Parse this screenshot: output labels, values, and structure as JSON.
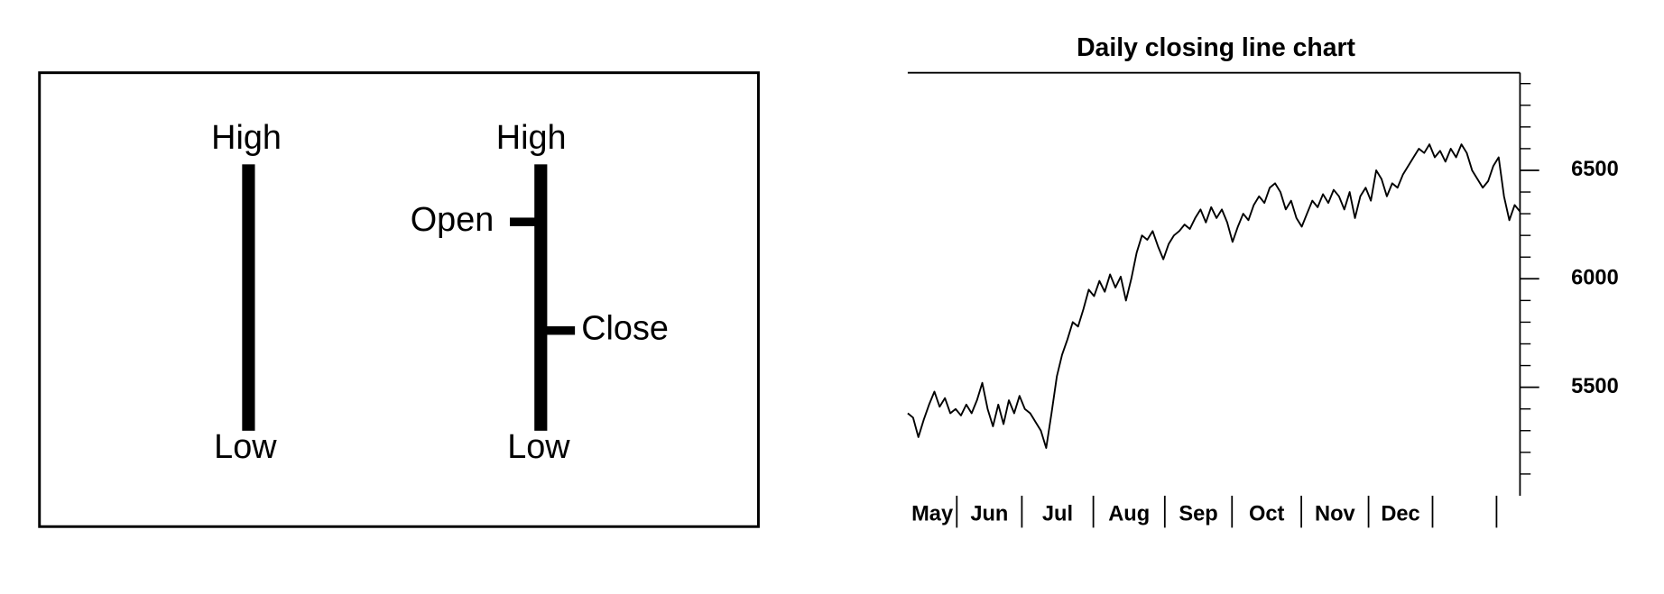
{
  "diagram": {
    "bar_chart": {
      "high": "High",
      "low": "Low"
    },
    "ohlc_chart": {
      "high": "High",
      "open": "Open",
      "close": "Close",
      "low": "Low"
    }
  },
  "chart_data": {
    "type": "line",
    "title": "Daily closing line chart",
    "color": "#000000",
    "x_tick_labels": [
      "May",
      "Jun",
      "Jul",
      "Aug",
      "Sep",
      "Oct",
      "Nov",
      "Dec",
      null
    ],
    "values": [
      5380,
      5360,
      5270,
      5350,
      5420,
      5480,
      5410,
      5450,
      5380,
      5400,
      5370,
      5420,
      5380,
      5440,
      5520,
      5400,
      5320,
      5420,
      5330,
      5440,
      5380,
      5460,
      5400,
      5380,
      5340,
      5300,
      5220,
      5380,
      5550,
      5650,
      5720,
      5800,
      5780,
      5860,
      5950,
      5920,
      5990,
      5940,
      6020,
      5960,
      6010,
      5900,
      6000,
      6120,
      6200,
      6180,
      6220,
      6150,
      6090,
      6160,
      6200,
      6220,
      6250,
      6230,
      6280,
      6320,
      6260,
      6330,
      6280,
      6320,
      6260,
      6170,
      6240,
      6300,
      6270,
      6340,
      6380,
      6350,
      6420,
      6440,
      6400,
      6320,
      6360,
      6280,
      6240,
      6300,
      6360,
      6330,
      6390,
      6350,
      6410,
      6380,
      6320,
      6400,
      6280,
      6380,
      6420,
      6360,
      6500,
      6460,
      6380,
      6440,
      6420,
      6480,
      6520,
      6560,
      6600,
      6580,
      6620,
      6560,
      6590,
      6540,
      6600,
      6560,
      6620,
      6580,
      6500,
      6460,
      6420,
      6450,
      6520,
      6560,
      6380,
      6270,
      6340,
      6310
    ],
    "ylim": [
      5000,
      6950
    ],
    "yticks": [
      5500,
      6000,
      6500
    ],
    "y_minor_ticks": [
      5100,
      5200,
      5300,
      5400,
      5600,
      5700,
      5800,
      5900,
      6100,
      6200,
      6300,
      6400,
      6600,
      6700,
      6800,
      6900
    ],
    "y_axis_side": "right"
  }
}
